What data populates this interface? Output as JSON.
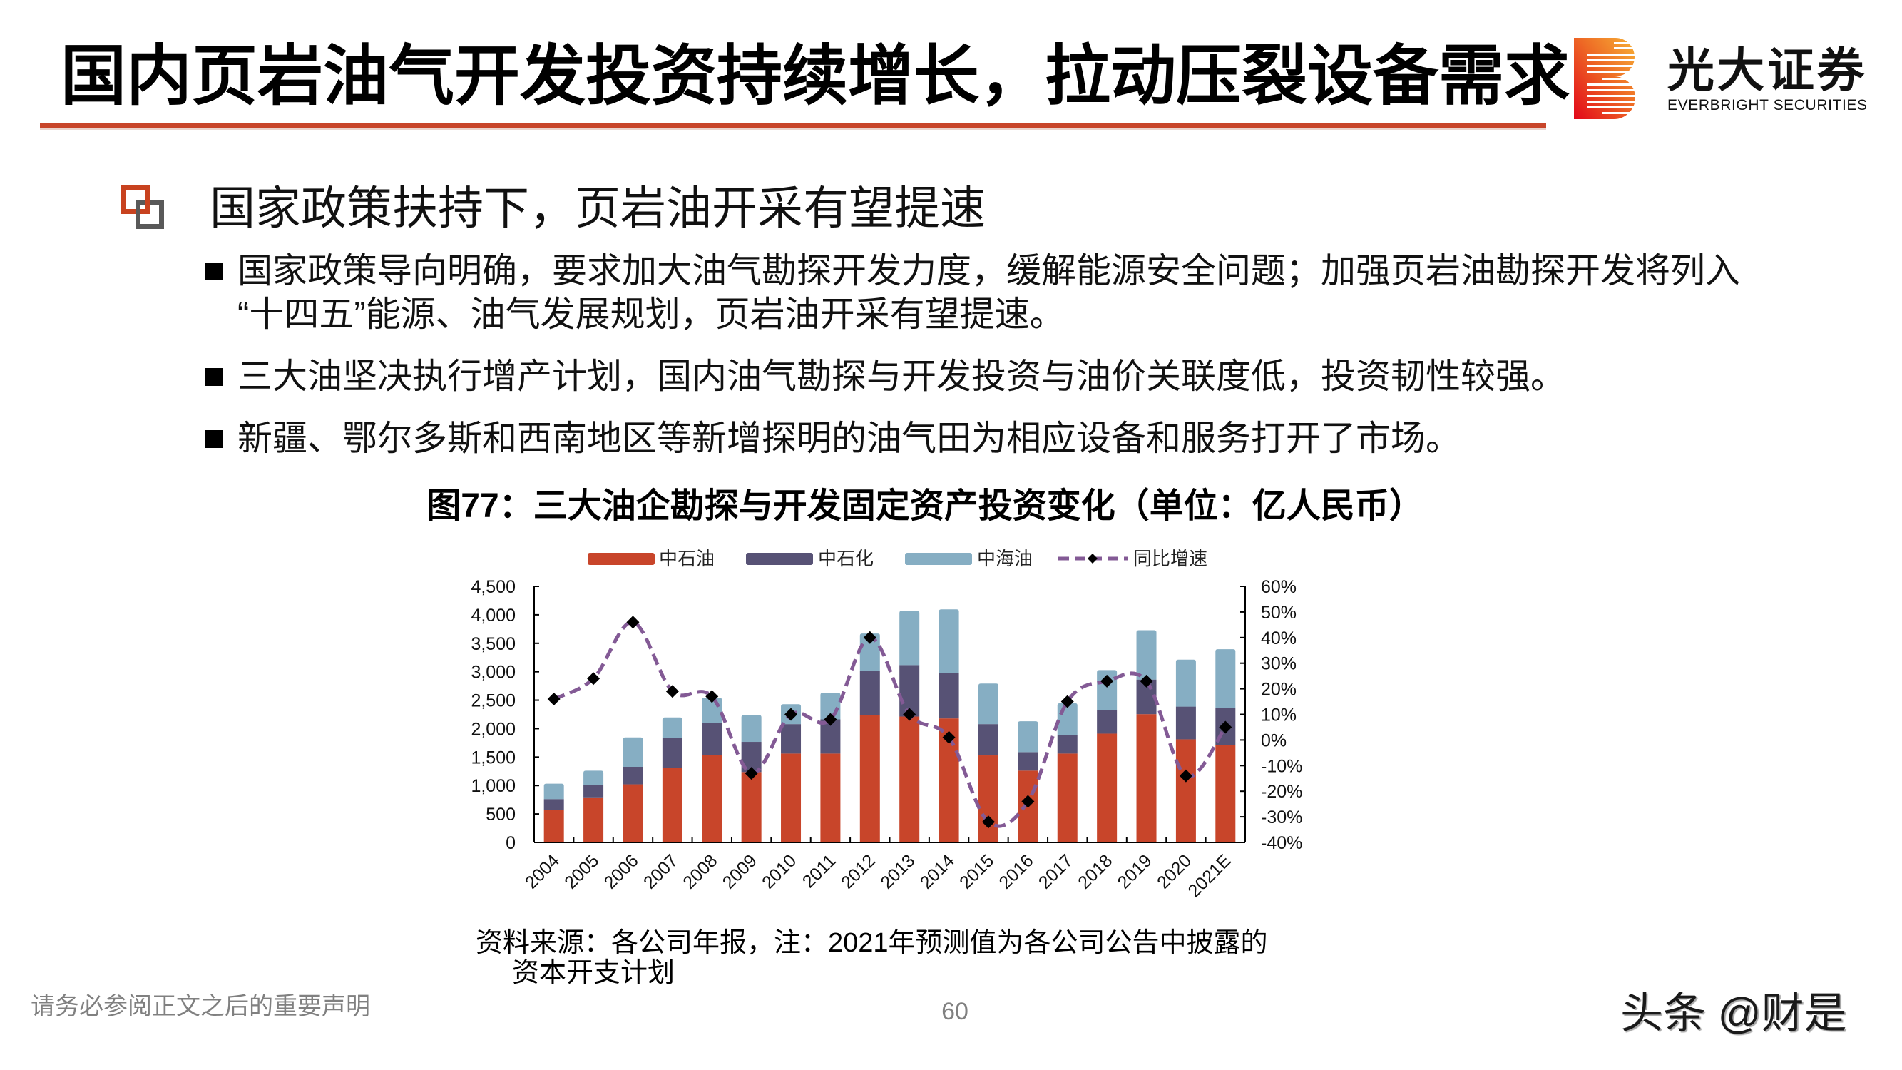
{
  "header": {
    "title": "国内页岩油气开发投资持续增长，拉动压裂设备需求",
    "logo": {
      "icon": "everbright-b-logo-icon",
      "name_cn": "光大证券",
      "name_en": "EVERBRIGHT SECURITIES"
    }
  },
  "section": {
    "icon": "overlapping-squares-icon",
    "heading": "国家政策扶持下，页岩油开采有望提速",
    "bullets": [
      {
        "lines": [
          "国家政策导向明确，要求加大油气勘探开发力度，缓解能源安全问题；加强页岩油勘探开发将列入",
          "“十四五”能源、油气发展规划，页岩油开采有望提速。"
        ]
      },
      {
        "lines": [
          "三大油坚决执行增产计划，国内油气勘探与开发投资与油价关联度低，投资韧性较强。"
        ]
      },
      {
        "lines": [
          "新疆、鄂尔多斯和西南地区等新增探明的油气田为相应设备和服务打开了市场。"
        ]
      }
    ]
  },
  "figure": {
    "caption": "图77：三大油企勘探与开发固定资产投资变化（单位：亿人民币）",
    "source_lines": [
      "资料来源：各公司年报，注：2021年预测值为各公司公告中披露的",
      "资本开支计划"
    ]
  },
  "chart_data": {
    "type": "bar",
    "subtype": "stacked-bar-with-line-secondary-axis",
    "title": "图77：三大油企勘探与开发固定资产投资变化（单位：亿人民币）",
    "unit": "亿人民币",
    "xlabel": "",
    "ylabel": "",
    "grid": false,
    "categories": [
      "2004",
      "2005",
      "2006",
      "2007",
      "2008",
      "2009",
      "2010",
      "2011",
      "2012",
      "2013",
      "2014",
      "2015",
      "2016",
      "2017",
      "2018",
      "2019",
      "2020",
      "2021E"
    ],
    "series": [
      {
        "name": "中石油",
        "type": "bar",
        "axis": "left",
        "color": "#C8452A",
        "values": [
          567,
          792,
          1021,
          1308,
          1533,
          1237,
          1562,
          1562,
          2242,
          2212,
          2179,
          1529,
          1262,
          1562,
          1912,
          2254,
          1812,
          1708
        ]
      },
      {
        "name": "中石化",
        "type": "bar",
        "axis": "left",
        "color": "#575275",
        "values": [
          195,
          220,
          308,
          529,
          571,
          530,
          517,
          600,
          775,
          905,
          800,
          550,
          325,
          325,
          417,
          608,
          575,
          654
        ]
      },
      {
        "name": "中海油",
        "type": "bar",
        "axis": "left",
        "color": "#86AEC3",
        "values": [
          271,
          250,
          517,
          359,
          438,
          470,
          350,
          467,
          654,
          954,
          1117,
          713,
          542,
          559,
          700,
          867,
          825,
          1034
        ]
      },
      {
        "name": "同比增速",
        "type": "line",
        "axis": "right",
        "color": "#835A95",
        "style": "dashed-smooth",
        "marker": "diamond",
        "marker_color": "#000000",
        "values": [
          16,
          24,
          46,
          19,
          17,
          -13,
          10,
          8,
          40,
          10,
          1,
          -32,
          -24,
          15,
          23,
          23,
          -14,
          5
        ]
      }
    ],
    "y_left": {
      "min": 0,
      "max": 4500,
      "step": 500,
      "ticks": [
        "0",
        "500",
        "1,000",
        "1,500",
        "2,000",
        "2,500",
        "3,000",
        "3,500",
        "4,000",
        "4,500"
      ]
    },
    "y_right": {
      "min": -40,
      "max": 60,
      "step": 10,
      "ticks": [
        "-40%",
        "-30%",
        "-20%",
        "-10%",
        "0%",
        "10%",
        "20%",
        "30%",
        "40%",
        "50%",
        "60%"
      ]
    },
    "legend": {
      "position": "top",
      "entries": [
        "中石油",
        "中石化",
        "中海油",
        "同比增速"
      ]
    }
  },
  "footer": {
    "disclaimer": "请务必参阅正文之后的重要声明",
    "page_number": "60",
    "watermark": "头条 @财是"
  },
  "colors": {
    "accent": "#C8452A",
    "icon_gray": "#595959",
    "footer_text": "#808080"
  }
}
